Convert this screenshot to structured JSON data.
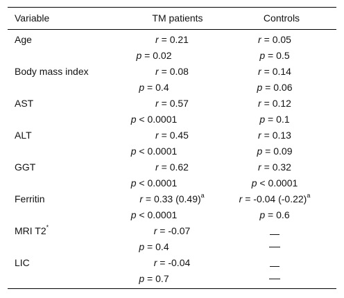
{
  "headers": [
    "Variable",
    "TM patients",
    "Controls"
  ],
  "rows": [
    {
      "variable": "Age",
      "tm_r": "0.21",
      "tm_p_op": "=",
      "tm_p": "0.02",
      "ctrl_r": "0.05",
      "ctrl_p_op": "=",
      "ctrl_p": "0.5"
    },
    {
      "variable": "Body mass index",
      "tm_r": "0.08",
      "tm_p_op": "=",
      "tm_p": "0.4",
      "ctrl_r": "0.14",
      "ctrl_p_op": "=",
      "ctrl_p": "0.06"
    },
    {
      "variable": "AST",
      "tm_r": "0.57",
      "tm_p_op": "<",
      "tm_p": "0.0001",
      "ctrl_r": "0.12",
      "ctrl_p_op": "=",
      "ctrl_p": "0.1"
    },
    {
      "variable": "ALT",
      "tm_r": "0.45",
      "tm_p_op": "<",
      "tm_p": "0.0001",
      "ctrl_r": "0.13",
      "ctrl_p_op": "=",
      "ctrl_p": "0.09"
    },
    {
      "variable": "GGT",
      "tm_r": "0.62",
      "tm_p_op": "<",
      "tm_p": "0.0001",
      "ctrl_r": "0.32",
      "ctrl_p_op": "<",
      "ctrl_p": "0.0001"
    },
    {
      "variable": "Ferritin",
      "tm_r": "0.33 (0.49)",
      "tm_r_sup": "a",
      "tm_p_op": "<",
      "tm_p": "0.0001",
      "ctrl_r": "-0.04 (-0.22)",
      "ctrl_r_sup": "a",
      "ctrl_p_op": "=",
      "ctrl_p": "0.6"
    },
    {
      "variable": "MRI T2",
      "variable_sup": "*",
      "tm_r": "-0.07",
      "tm_p_op": "=",
      "tm_p": "0.4",
      "ctrl_dash": true
    },
    {
      "variable": "LIC",
      "tm_r": "-0.04",
      "tm_p_op": "=",
      "tm_p": "0.7",
      "ctrl_dash": true
    }
  ],
  "labels": {
    "r": "r",
    "p": "p"
  }
}
